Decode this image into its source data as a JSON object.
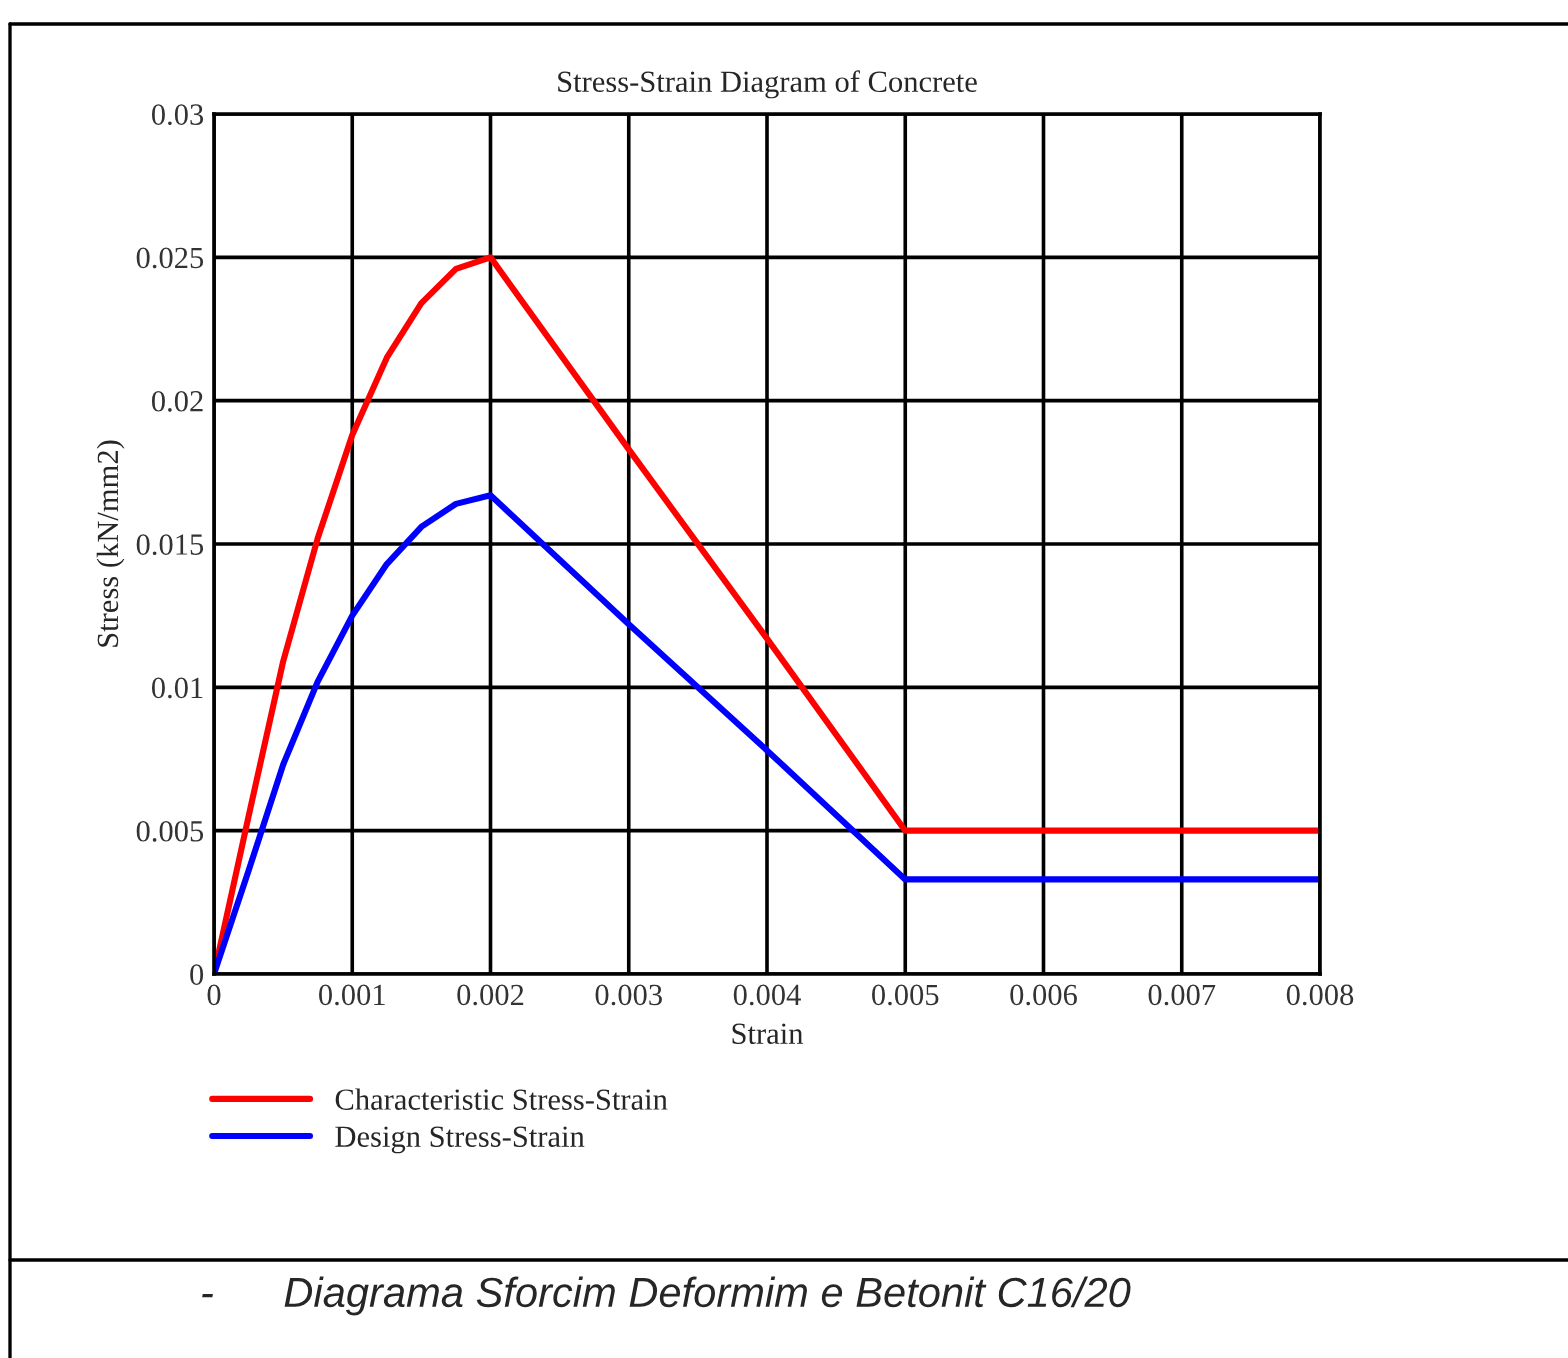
{
  "chart_data": {
    "type": "line",
    "title": "Stress-Strain Diagram of Concrete",
    "xlabel": "Strain",
    "ylabel": "Stress (kN/mm2)",
    "x": [
      0,
      0.00025,
      0.0005,
      0.00075,
      0.001,
      0.00125,
      0.0015,
      0.00175,
      0.002,
      0.003,
      0.004,
      0.005,
      0.008
    ],
    "series": [
      {
        "name": "Characteristic Stress-Strain",
        "color": "#ff0000",
        "values": [
          0,
          0.0055,
          0.0109,
          0.0152,
          0.0188,
          0.0215,
          0.0234,
          0.0246,
          0.025,
          0.0183,
          0.0117,
          0.005,
          0.005
        ]
      },
      {
        "name": "Design Stress-Strain",
        "color": "#0000ff",
        "values": [
          0,
          0.0036,
          0.0073,
          0.0102,
          0.0125,
          0.0143,
          0.0156,
          0.0164,
          0.0167,
          0.0122,
          0.0078,
          0.0033,
          0.0033
        ]
      }
    ],
    "xlim": [
      0,
      0.008
    ],
    "ylim": [
      0,
      0.03
    ],
    "xticks": [
      0,
      0.001,
      0.002,
      0.003,
      0.004,
      0.005,
      0.006,
      0.007,
      0.008
    ],
    "yticks": [
      0,
      0.005,
      0.01,
      0.015,
      0.02,
      0.025,
      0.03
    ],
    "grid": true,
    "legend": "bottom",
    "line_style": "solid",
    "annotations": [
      "-      Diagrama Sforcim Deformim e Betonit C16/20"
    ]
  }
}
